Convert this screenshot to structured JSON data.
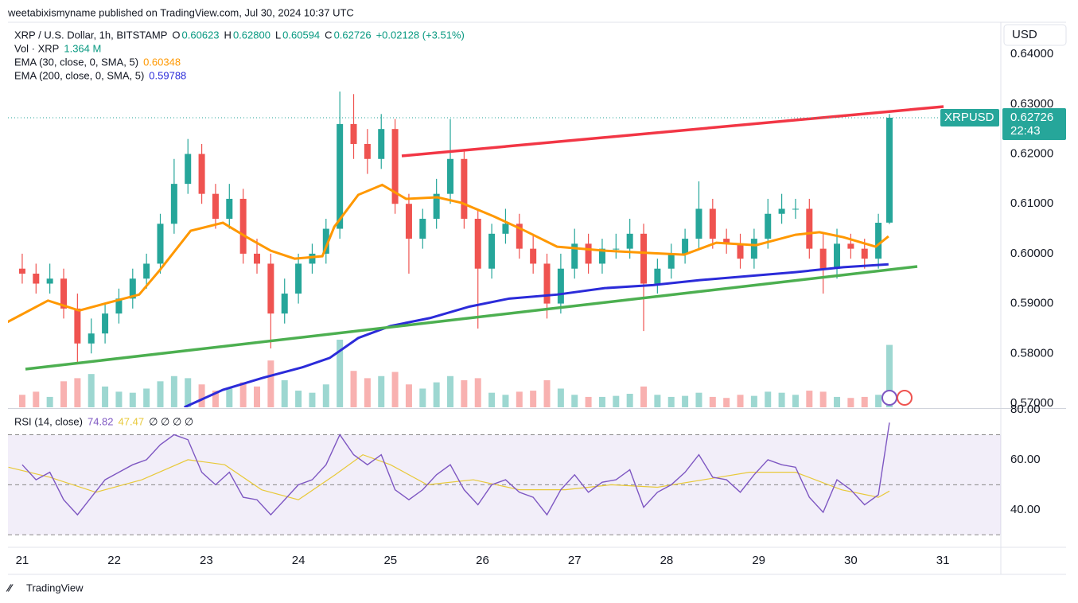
{
  "header": {
    "publisher": "weetabixismyname published on TradingView.com, Jul 30, 2024 10:37 UTC",
    "brand": "TradingView"
  },
  "chart_data": [
    {
      "type": "candlestick",
      "symbol": "XRP / U.S. Dollar, 1h, BITSTAMP",
      "ohlc_legend": [
        {
          "key": "O",
          "value": "0.60623"
        },
        {
          "key": "H",
          "value": "0.62800"
        },
        {
          "key": "L",
          "value": "0.60594"
        },
        {
          "key": "C",
          "value": "0.62726"
        }
      ],
      "change": "+0.02128 (+3.51%)",
      "x": [
        21,
        21.15,
        21.3,
        21.45,
        21.6,
        21.75,
        21.9,
        22.05,
        22.2,
        22.35,
        22.5,
        22.65,
        22.8,
        22.95,
        23.1,
        23.25,
        23.4,
        23.55,
        23.7,
        23.85,
        24,
        24.15,
        24.3,
        24.45,
        24.6,
        24.75,
        24.9,
        25.05,
        25.2,
        25.35,
        25.5,
        25.65,
        25.8,
        25.95,
        26.1,
        26.25,
        26.4,
        26.55,
        26.7,
        26.85,
        27,
        27.15,
        27.3,
        27.45,
        27.6,
        27.75,
        27.9,
        28.05,
        28.2,
        28.35,
        28.5,
        28.65,
        28.8,
        28.95,
        29.1,
        29.25,
        29.4,
        29.55,
        29.7,
        29.85,
        30,
        30.15,
        30.3,
        30.42
      ],
      "open": [
        0.597,
        0.596,
        0.594,
        0.595,
        0.589,
        0.582,
        0.584,
        0.588,
        0.591,
        0.595,
        0.598,
        0.606,
        0.614,
        0.62,
        0.612,
        0.607,
        0.611,
        0.6,
        0.598,
        0.588,
        0.592,
        0.598,
        0.6,
        0.605,
        0.626,
        0.622,
        0.619,
        0.625,
        0.61,
        0.603,
        0.607,
        0.612,
        0.619,
        0.607,
        0.597,
        0.604,
        0.606,
        0.601,
        0.598,
        0.59,
        0.597,
        0.602,
        0.598,
        0.601,
        0.601,
        0.604,
        0.594,
        0.597,
        0.6,
        0.603,
        0.609,
        0.603,
        0.602,
        0.599,
        0.603,
        0.608,
        0.609,
        0.609,
        0.601,
        0.597,
        0.602,
        0.601,
        0.599,
        0.60623
      ],
      "high": [
        0.6,
        0.598,
        0.598,
        0.597,
        0.592,
        0.587,
        0.59,
        0.593,
        0.597,
        0.6,
        0.608,
        0.619,
        0.623,
        0.622,
        0.614,
        0.614,
        0.613,
        0.603,
        0.6,
        0.595,
        0.6,
        0.602,
        0.607,
        0.6325,
        0.632,
        0.625,
        0.628,
        0.627,
        0.612,
        0.609,
        0.615,
        0.627,
        0.621,
        0.609,
        0.606,
        0.609,
        0.608,
        0.604,
        0.6,
        0.6,
        0.605,
        0.604,
        0.603,
        0.604,
        0.607,
        0.606,
        0.599,
        0.602,
        0.605,
        0.6145,
        0.611,
        0.605,
        0.604,
        0.605,
        0.611,
        0.612,
        0.611,
        0.611,
        0.604,
        0.605,
        0.604,
        0.603,
        0.608,
        0.628
      ],
      "low": [
        0.594,
        0.592,
        0.592,
        0.587,
        0.578,
        0.58,
        0.582,
        0.586,
        0.589,
        0.593,
        0.596,
        0.604,
        0.612,
        0.61,
        0.605,
        0.605,
        0.598,
        0.596,
        0.581,
        0.586,
        0.59,
        0.596,
        0.598,
        0.603,
        0.619,
        0.616,
        0.617,
        0.608,
        0.596,
        0.601,
        0.605,
        0.61,
        0.605,
        0.585,
        0.595,
        0.602,
        0.599,
        0.596,
        0.587,
        0.588,
        0.595,
        0.596,
        0.596,
        0.599,
        0.599,
        0.5845,
        0.592,
        0.595,
        0.598,
        0.601,
        0.601,
        0.6,
        0.597,
        0.597,
        0.601,
        0.606,
        0.607,
        0.599,
        0.592,
        0.595,
        0.599,
        0.597,
        0.597,
        0.60594
      ],
      "close": [
        0.596,
        0.594,
        0.595,
        0.589,
        0.582,
        0.584,
        0.588,
        0.591,
        0.595,
        0.598,
        0.606,
        0.614,
        0.62,
        0.612,
        0.607,
        0.611,
        0.6,
        0.598,
        0.588,
        0.592,
        0.598,
        0.6,
        0.605,
        0.626,
        0.622,
        0.619,
        0.625,
        0.61,
        0.603,
        0.607,
        0.612,
        0.619,
        0.607,
        0.597,
        0.604,
        0.606,
        0.601,
        0.598,
        0.59,
        0.597,
        0.602,
        0.598,
        0.601,
        0.601,
        0.604,
        0.594,
        0.597,
        0.6,
        0.603,
        0.609,
        0.603,
        0.602,
        0.599,
        0.603,
        0.608,
        0.609,
        0.609,
        0.601,
        0.597,
        0.602,
        0.601,
        0.599,
        0.6062,
        0.62726
      ],
      "up_color": "#26a69a",
      "down_color": "#ef5350",
      "volume": {
        "name": "Vol · XRP",
        "value_label": "1.364 M",
        "values": [
          1.2,
          1.5,
          1.0,
          2.5,
          2.8,
          3.2,
          2.0,
          1.5,
          1.4,
          1.8,
          2.5,
          3.0,
          2.8,
          2.2,
          1.6,
          1.8,
          2.4,
          2.0,
          4.5,
          2.6,
          1.6,
          1.4,
          2.2,
          6.5,
          3.5,
          2.8,
          3.0,
          3.4,
          2.2,
          1.8,
          2.4,
          3.0,
          2.6,
          2.8,
          1.4,
          1.2,
          1.5,
          1.6,
          2.6,
          1.8,
          1.2,
          1.0,
          1.0,
          1.1,
          1.3,
          2.0,
          1.2,
          1.0,
          1.1,
          1.4,
          1.0,
          0.9,
          1.2,
          1.1,
          1.5,
          1.4,
          1.2,
          1.6,
          1.5,
          1.0,
          0.9,
          1.0,
          1.2,
          6.0
        ]
      },
      "series": [
        {
          "name": "EMA (30, close, 0, SMA, 5)",
          "value_label": "0.60348",
          "color": "#ff9800",
          "x": [
            20.84,
            21.28,
            21.62,
            21.88,
            22.27,
            22.49,
            22.83,
            23.18,
            23.44,
            23.7,
            23.96,
            24.26,
            24.39,
            24.65,
            24.91,
            25.17,
            25.51,
            25.77,
            26.12,
            26.46,
            26.81,
            27.33,
            27.85,
            28.19,
            28.54,
            28.97,
            29.4,
            29.66,
            29.92,
            30.27,
            30.41
          ],
          "values": [
            0.5863,
            0.5906,
            0.5886,
            0.5899,
            0.5918,
            0.5966,
            0.6046,
            0.6062,
            0.6033,
            0.6006,
            0.599,
            0.5995,
            0.6054,
            0.6118,
            0.6138,
            0.611,
            0.6113,
            0.6102,
            0.6075,
            0.6046,
            0.6014,
            0.6006,
            0.6001,
            0.5998,
            0.6022,
            0.6017,
            0.6038,
            0.6043,
            0.6033,
            0.6014,
            0.60348
          ]
        },
        {
          "name": "EMA (200, close, 0, SMA, 5)",
          "value_label": "0.59788",
          "color": "#2b2bd9",
          "x": [
            22.76,
            23.18,
            23.61,
            24.04,
            24.34,
            24.65,
            25.0,
            25.43,
            25.86,
            26.29,
            26.81,
            27.33,
            27.85,
            28.36,
            28.88,
            29.4,
            29.92,
            30.41
          ],
          "values": [
            0.5692,
            0.5727,
            0.5751,
            0.5772,
            0.5791,
            0.5831,
            0.5855,
            0.5871,
            0.5894,
            0.591,
            0.5918,
            0.5931,
            0.5937,
            0.5947,
            0.5955,
            0.5963,
            0.5973,
            0.59788
          ]
        }
      ],
      "currency": "USD",
      "last_price": {
        "label": "XRPUSD",
        "value_label": "0.62726",
        "countdown": "22:43"
      },
      "xlim": [
        20.845,
        31.63
      ],
      "xticks": [
        21,
        22,
        23,
        24,
        25,
        26,
        27,
        28,
        29,
        30,
        31
      ],
      "ylim": [
        0.5692,
        0.6464
      ],
      "yticks": [
        {
          "value": 0.57,
          "label": "0.57000"
        },
        {
          "value": 0.58,
          "label": "0.58000"
        },
        {
          "value": 0.59,
          "label": "0.59000"
        },
        {
          "value": 0.6,
          "label": "0.60000"
        },
        {
          "value": 0.61,
          "label": "0.61000"
        },
        {
          "value": 0.62,
          "label": "0.62000"
        },
        {
          "value": 0.63,
          "label": "0.63000"
        },
        {
          "value": 0.64,
          "label": "0.64000"
        }
      ]
    },
    {
      "type": "line",
      "title": "RSI (14, close)",
      "extra": "∅ ∅ ∅ ∅",
      "series": [
        {
          "value_label": "74.82",
          "color": "#7e57c2",
          "values": [
            58,
            52,
            55,
            44,
            38,
            45,
            52,
            55,
            58,
            60,
            66,
            70,
            68,
            55,
            50,
            55,
            45,
            44,
            38,
            44,
            50,
            52,
            58,
            70,
            62,
            58,
            62,
            48,
            44,
            48,
            54,
            58,
            48,
            42,
            50,
            52,
            47,
            45,
            38,
            48,
            54,
            47,
            51,
            52,
            56,
            41,
            47,
            50,
            55,
            62,
            53,
            52,
            47,
            54,
            60,
            58,
            57,
            45,
            39,
            52,
            48,
            42,
            46,
            74.82
          ]
        },
        {
          "value_label": "47.47",
          "color": "#e8c93a",
          "x": [
            20.85,
            21.3,
            21.8,
            22.3,
            22.8,
            23.2,
            23.6,
            24.0,
            24.4,
            24.7,
            25.0,
            25.4,
            25.9,
            26.4,
            26.9,
            27.4,
            27.9,
            28.4,
            28.9,
            29.4,
            29.9,
            30.3,
            30.42
          ],
          "values": [
            57,
            53,
            47,
            52,
            60,
            58,
            48,
            44,
            54,
            62,
            58,
            50,
            52,
            48,
            48,
            50,
            49,
            52,
            55,
            55,
            48,
            45,
            47.47
          ]
        }
      ],
      "band": [
        30,
        70
      ],
      "levels": [
        70,
        50,
        30
      ],
      "band_color": "#7e57c2",
      "ylim": [
        25,
        80
      ],
      "yticks": [
        {
          "value": 80,
          "label": "80.00"
        },
        {
          "value": 60,
          "label": "60.00"
        },
        {
          "value": 40,
          "label": "40.00"
        }
      ]
    }
  ]
}
